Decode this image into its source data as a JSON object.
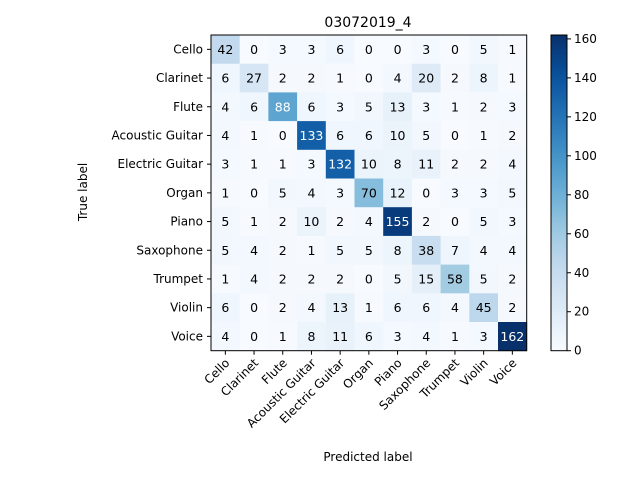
{
  "chart_data": {
    "type": "heatmap",
    "title": "03072019_4",
    "xlabel": "Predicted label",
    "ylabel": "True label",
    "x_categories": [
      "Cello",
      "Clarinet",
      "Flute",
      "Acoustic Guitar",
      "Electric Guitar",
      "Organ",
      "Piano",
      "Saxophone",
      "Trumpet",
      "Violin",
      "Voice"
    ],
    "y_categories": [
      "Cello",
      "Clarinet",
      "Flute",
      "Acoustic Guitar",
      "Electric Guitar",
      "Organ",
      "Piano",
      "Saxophone",
      "Trumpet",
      "Violin",
      "Voice"
    ],
    "values": [
      [
        42,
        0,
        3,
        3,
        6,
        0,
        0,
        3,
        0,
        5,
        1
      ],
      [
        6,
        27,
        2,
        2,
        1,
        0,
        4,
        20,
        2,
        8,
        1
      ],
      [
        4,
        6,
        88,
        6,
        3,
        5,
        13,
        3,
        1,
        2,
        3
      ],
      [
        4,
        1,
        0,
        133,
        6,
        6,
        10,
        5,
        0,
        1,
        2
      ],
      [
        3,
        1,
        1,
        3,
        132,
        10,
        8,
        11,
        2,
        2,
        4
      ],
      [
        1,
        0,
        5,
        4,
        3,
        70,
        12,
        0,
        3,
        3,
        5
      ],
      [
        5,
        1,
        2,
        10,
        2,
        4,
        155,
        2,
        0,
        5,
        3
      ],
      [
        5,
        4,
        2,
        1,
        5,
        5,
        8,
        38,
        7,
        4,
        4
      ],
      [
        1,
        4,
        2,
        2,
        2,
        0,
        5,
        15,
        58,
        5,
        2
      ],
      [
        6,
        0,
        2,
        4,
        13,
        1,
        6,
        6,
        4,
        45,
        2
      ],
      [
        4,
        0,
        1,
        8,
        11,
        6,
        3,
        4,
        1,
        3,
        162
      ]
    ],
    "colorbar": {
      "cmap": "Blues",
      "vmin": 0,
      "vmax": 162,
      "ticks": [
        0,
        20,
        40,
        60,
        80,
        100,
        120,
        140,
        160
      ]
    },
    "text_threshold": 81
  }
}
